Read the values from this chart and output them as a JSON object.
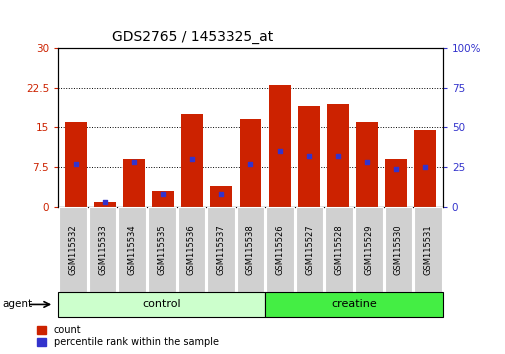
{
  "title": "GDS2765 / 1453325_at",
  "categories": [
    "GSM115532",
    "GSM115533",
    "GSM115534",
    "GSM115535",
    "GSM115536",
    "GSM115537",
    "GSM115538",
    "GSM115526",
    "GSM115527",
    "GSM115528",
    "GSM115529",
    "GSM115530",
    "GSM115531"
  ],
  "count_values": [
    16.1,
    1.0,
    9.0,
    3.0,
    17.5,
    4.0,
    16.5,
    23.0,
    19.0,
    19.5,
    16.0,
    9.0,
    14.5
  ],
  "percentile_values": [
    27,
    3,
    28,
    8,
    30,
    8,
    27,
    35,
    32,
    32,
    28,
    24,
    25
  ],
  "group_labels": [
    "control",
    "creatine"
  ],
  "n_control": 7,
  "n_creatine": 6,
  "group_colors": [
    "#ccffcc",
    "#44ee44"
  ],
  "left_ylim": [
    0,
    30
  ],
  "right_ylim": [
    0,
    100
  ],
  "left_yticks": [
    0,
    7.5,
    15,
    22.5,
    30
  ],
  "right_yticks": [
    0,
    25,
    50,
    75,
    100
  ],
  "bar_color": "#cc2200",
  "dot_color": "#3333cc",
  "background_color": "#ffffff",
  "xticklabel_bg": "#d0d0d0",
  "agent_label": "agent",
  "legend_count": "count",
  "legend_pct": "percentile rank within the sample",
  "title_fontsize": 10,
  "axis_fontsize": 7.5,
  "label_fontsize": 6
}
